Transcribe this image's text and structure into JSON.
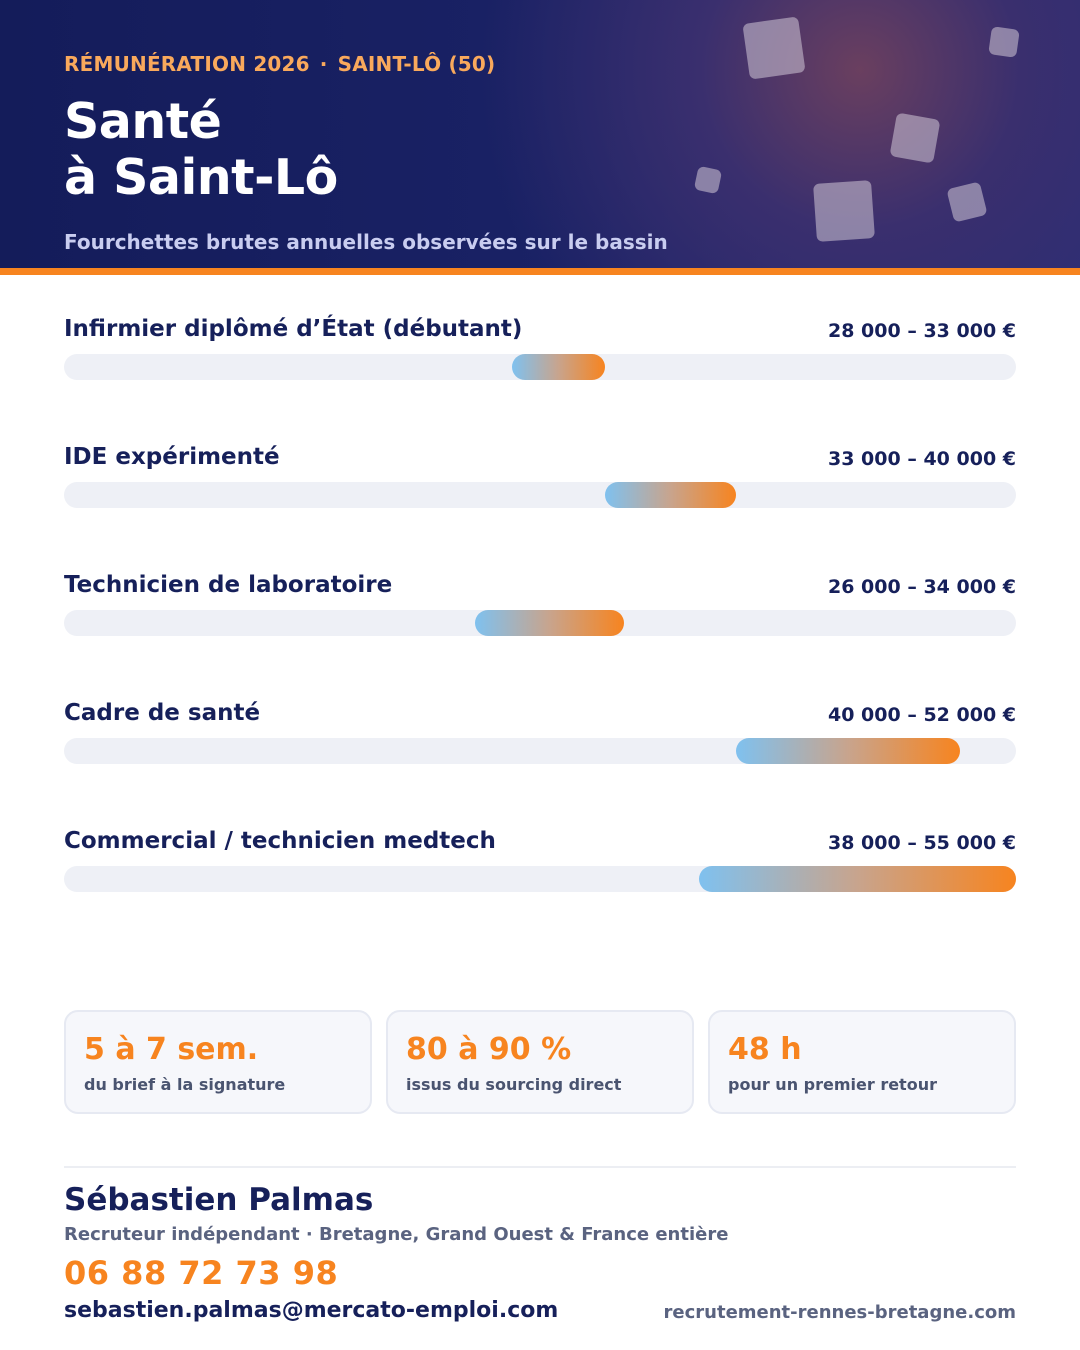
{
  "header": {
    "kicker_left": "RÉMUNÉRATION 2026",
    "kicker_sep": "·",
    "kicker_right": "SAINT-LÔ (50)",
    "title_line1": "Santé",
    "title_line2": "à Saint-Lô",
    "subtitle": "Fourchettes brutes annuelles observées sur le bassin"
  },
  "colors": {
    "header_bg": "#1a2266",
    "accent": "#f7841f",
    "navy_text": "#16205a",
    "bar_start": "#7fc1ef",
    "bar_end": "#f7841f",
    "track": "#eef0f6"
  },
  "salary_rows": [
    {
      "label": "Infirmier diplômé d’État (débutant)",
      "range_text": "28 000 – 33 000 €",
      "min": 28000,
      "max": 33000
    },
    {
      "label": "IDE expérimenté",
      "range_text": "33 000 – 40 000 €",
      "min": 33000,
      "max": 40000
    },
    {
      "label": "Technicien de laboratoire",
      "range_text": "26 000 – 34 000 €",
      "min": 26000,
      "max": 34000
    },
    {
      "label": "Cadre de santé",
      "range_text": "40 000 – 52 000 €",
      "min": 40000,
      "max": 52000
    },
    {
      "label": "Commercial / technicien medtech",
      "range_text": "38 000 – 55 000 €",
      "min": 38000,
      "max": 55000
    }
  ],
  "stats": [
    {
      "value": "5 à 7 sem.",
      "caption": "du brief à la signature"
    },
    {
      "value": "80 à 90 %",
      "caption": "issus du sourcing direct"
    },
    {
      "value": "48 h",
      "caption": "pour un premier retour"
    }
  ],
  "contact": {
    "name": "Sébastien Palmas",
    "role": "Recruteur indépendant · Bretagne, Grand Ouest & France entière",
    "phone": "06 88 72 73 98",
    "email": "sebastien.palmas@mercato-emploi.com",
    "website": "recrutement-rennes-bretagne.com"
  }
}
